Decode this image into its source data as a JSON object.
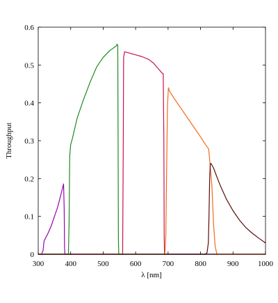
{
  "chart_data": {
    "type": "line",
    "title": "",
    "xlabel": "λ [nm]",
    "ylabel": "Throughput",
    "xlim": [
      300,
      1000
    ],
    "ylim": [
      0,
      0.6
    ],
    "xticks": [
      300,
      400,
      500,
      600,
      700,
      800,
      900,
      1000
    ],
    "yticks": [
      0,
      0.1,
      0.2,
      0.3,
      0.4,
      0.5,
      0.6
    ],
    "ytick_labels": [
      "0",
      "0.1",
      "0.2",
      "0.3",
      "0.4",
      "0.5",
      "0.6"
    ],
    "grid": false,
    "legend": "none",
    "series": [
      {
        "color": "#9b00b3",
        "points": [
          [
            300,
            0
          ],
          [
            310,
            0
          ],
          [
            315,
            0.01
          ],
          [
            318,
            0.035
          ],
          [
            322,
            0.042
          ],
          [
            330,
            0.055
          ],
          [
            340,
            0.075
          ],
          [
            350,
            0.1
          ],
          [
            360,
            0.125
          ],
          [
            370,
            0.158
          ],
          [
            375,
            0.175
          ],
          [
            378,
            0.186
          ],
          [
            380,
            0.12
          ],
          [
            381,
            0.02
          ],
          [
            382,
            0
          ],
          [
            1000,
            0
          ]
        ]
      },
      {
        "color": "#1f8a1f",
        "points": [
          [
            300,
            0
          ],
          [
            393,
            0
          ],
          [
            395,
            0.08
          ],
          [
            397,
            0.26
          ],
          [
            400,
            0.29
          ],
          [
            405,
            0.305
          ],
          [
            420,
            0.36
          ],
          [
            440,
            0.41
          ],
          [
            460,
            0.455
          ],
          [
            480,
            0.495
          ],
          [
            500,
            0.52
          ],
          [
            520,
            0.538
          ],
          [
            540,
            0.55
          ],
          [
            543,
            0.555
          ],
          [
            545,
            0.552
          ],
          [
            546,
            0.3
          ],
          [
            547,
            0.04
          ],
          [
            548,
            0
          ],
          [
            1000,
            0
          ]
        ]
      },
      {
        "color": "#c8104a",
        "points": [
          [
            300,
            0
          ],
          [
            560,
            0
          ],
          [
            562,
            0.3
          ],
          [
            563,
            0.52
          ],
          [
            566,
            0.535
          ],
          [
            575,
            0.533
          ],
          [
            600,
            0.527
          ],
          [
            620,
            0.522
          ],
          [
            640,
            0.515
          ],
          [
            655,
            0.505
          ],
          [
            670,
            0.49
          ],
          [
            680,
            0.48
          ],
          [
            685,
            0.477
          ],
          [
            687,
            0.3
          ],
          [
            688,
            0.05
          ],
          [
            689,
            0
          ],
          [
            1000,
            0
          ]
        ]
      },
      {
        "color": "#f06a1c",
        "points": [
          [
            300,
            0
          ],
          [
            690,
            0
          ],
          [
            693,
            0.05
          ],
          [
            698,
            0.39
          ],
          [
            701,
            0.44
          ],
          [
            705,
            0.43
          ],
          [
            720,
            0.41
          ],
          [
            740,
            0.385
          ],
          [
            760,
            0.36
          ],
          [
            780,
            0.335
          ],
          [
            800,
            0.31
          ],
          [
            815,
            0.29
          ],
          [
            825,
            0.278
          ],
          [
            830,
            0.23
          ],
          [
            835,
            0.18
          ],
          [
            840,
            0.08
          ],
          [
            845,
            0.02
          ],
          [
            850,
            0.002
          ],
          [
            855,
            0
          ],
          [
            1000,
            0
          ]
        ]
      },
      {
        "color": "#5a0a0a",
        "points": [
          [
            300,
            0
          ],
          [
            815,
            0
          ],
          [
            820,
            0.004
          ],
          [
            824,
            0.03
          ],
          [
            826,
            0.1
          ],
          [
            828,
            0.2
          ],
          [
            830,
            0.238
          ],
          [
            832,
            0.24
          ],
          [
            840,
            0.228
          ],
          [
            850,
            0.205
          ],
          [
            860,
            0.183
          ],
          [
            880,
            0.145
          ],
          [
            900,
            0.115
          ],
          [
            920,
            0.09
          ],
          [
            940,
            0.07
          ],
          [
            960,
            0.055
          ],
          [
            980,
            0.042
          ],
          [
            1000,
            0.03
          ]
        ]
      }
    ]
  }
}
